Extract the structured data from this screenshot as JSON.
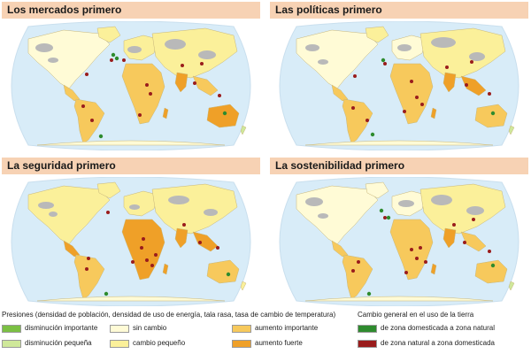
{
  "panels": [
    {
      "title": "Los mercados primero"
    },
    {
      "title": "Las políticas primero"
    },
    {
      "title": "La seguridad primero"
    },
    {
      "title": "La sostenibilidad primero"
    }
  ],
  "legend": {
    "pressures_title": "Presiones (densidad de población, densidad de uso de energía, tala rasa, tasa de cambio de temperatura)",
    "pressures": [
      {
        "label": "disminución importante",
        "color": "#7bc043"
      },
      {
        "label": "disminución pequeña",
        "color": "#cfe89a"
      },
      {
        "label": "sin cambio",
        "color": "#fffbd6"
      },
      {
        "label": "cambio pequeño",
        "color": "#fbf09a"
      },
      {
        "label": "aumento importante",
        "color": "#f7c95c"
      },
      {
        "label": "aumento fuerte",
        "color": "#efa028"
      }
    ],
    "landuse_title": "Cambio general en el uso de la tierra",
    "landuse": [
      {
        "label": "de zona domesticada a zona natural",
        "color": "#2e8b2e"
      },
      {
        "label": "de zona natural a zona domesticada",
        "color": "#9a1c1c"
      }
    ]
  },
  "colors": {
    "ocean": "#d8ecf8",
    "no_data": "#b9b9b9",
    "title_bar": "#f7d2b4"
  }
}
